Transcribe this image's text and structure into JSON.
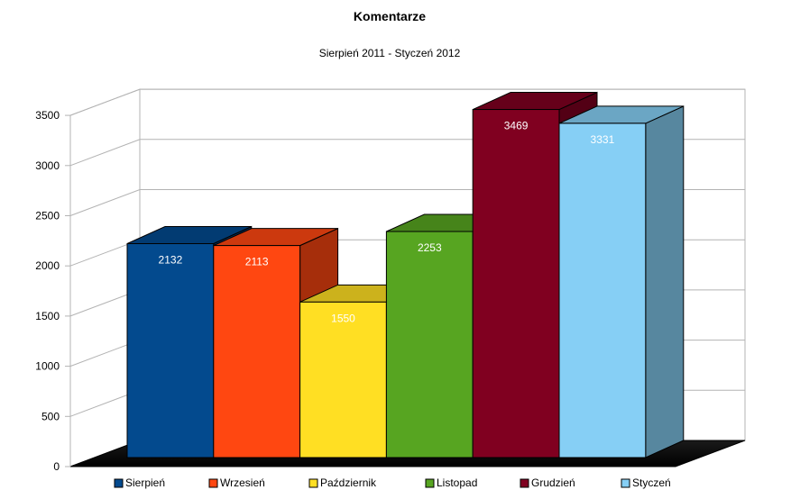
{
  "chart_data": {
    "type": "bar",
    "title": "Komentarze",
    "subtitle": "Sierpień 2011 - Styczeń 2012",
    "xlabel": "",
    "ylabel": "",
    "ylim": [
      0,
      3500
    ],
    "yticks": [
      0,
      500,
      1000,
      1500,
      2000,
      2500,
      3000,
      3500
    ],
    "grid": true,
    "legend_position": "bottom",
    "categories": [
      "Sierpień",
      "Wrzesień",
      "Październik",
      "Listopad",
      "Grudzień",
      "Styczeń"
    ],
    "values": [
      2132,
      2113,
      1550,
      2253,
      3469,
      3331
    ],
    "colors": [
      "#034a8e",
      "#ff4711",
      "#ffdf23",
      "#57a521",
      "#800020",
      "#86cff5"
    ]
  }
}
